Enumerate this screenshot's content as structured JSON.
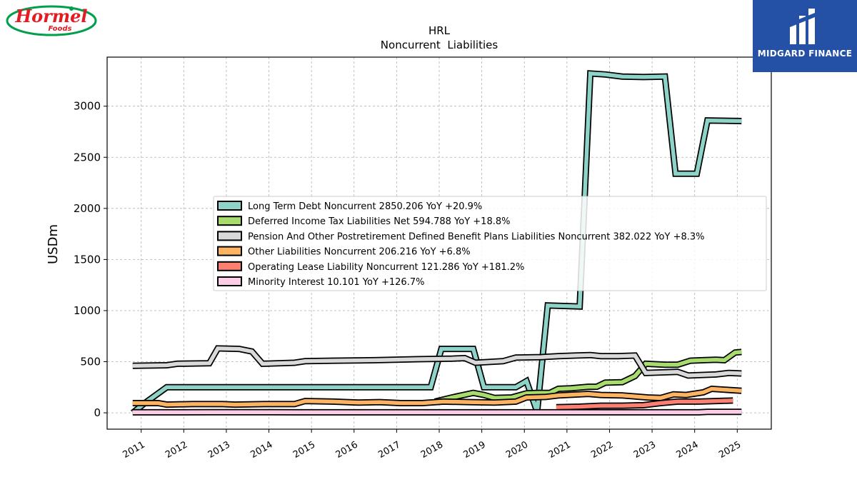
{
  "brand_left": {
    "name": "Hormel",
    "sub": "Foods",
    "color": "#e31b23",
    "ring": "#00a04a"
  },
  "brand_right": {
    "name": "MIDGARD FINANCE",
    "bg": "#2451a6"
  },
  "chart_data": {
    "type": "line",
    "title": "HRL",
    "subtitle": "Noncurrent  Liabilities",
    "ylabel": "USDm",
    "xlabel": "",
    "xlim": [
      2010.2,
      2025.8
    ],
    "ylim": [
      -160,
      3480
    ],
    "yticks": [
      0,
      500,
      1000,
      1500,
      2000,
      2500,
      3000
    ],
    "xticks": [
      "2011",
      "2012",
      "2013",
      "2014",
      "2015",
      "2016",
      "2017",
      "2018",
      "2019",
      "2020",
      "2021",
      "2022",
      "2023",
      "2024",
      "2025"
    ],
    "grid": true,
    "legend_position": "center-right",
    "series": [
      {
        "name": "Long Term Debt Noncurrent  2850.206 YoY +20.9%",
        "color": "#8dd3c7",
        "points": [
          [
            2010.8,
            0
          ],
          [
            2011.1,
            100
          ],
          [
            2011.6,
            250
          ],
          [
            2012.6,
            250
          ],
          [
            2013.5,
            250
          ],
          [
            2014.5,
            250
          ],
          [
            2015.5,
            250
          ],
          [
            2016.5,
            250
          ],
          [
            2017.5,
            250
          ],
          [
            2017.8,
            250
          ],
          [
            2018.05,
            625
          ],
          [
            2018.8,
            625
          ],
          [
            2019.05,
            250
          ],
          [
            2019.8,
            250
          ],
          [
            2020.05,
            310
          ],
          [
            2020.3,
            10
          ],
          [
            2020.55,
            1050
          ],
          [
            2021.3,
            1040
          ],
          [
            2021.55,
            3320
          ],
          [
            2021.9,
            3310
          ],
          [
            2022.3,
            3290
          ],
          [
            2022.8,
            3285
          ],
          [
            2023.3,
            3290
          ],
          [
            2023.55,
            2340
          ],
          [
            2024.05,
            2340
          ],
          [
            2024.3,
            2860
          ],
          [
            2025.1,
            2855
          ]
        ]
      },
      {
        "name": "Deferred Income Tax Liabilities Net  594.788 YoY +18.8%",
        "color": "#a8dd6e",
        "points": [
          [
            2017.9,
            110
          ],
          [
            2018.3,
            150
          ],
          [
            2018.8,
            195
          ],
          [
            2019.05,
            175
          ],
          [
            2019.3,
            145
          ],
          [
            2019.7,
            150
          ],
          [
            2020.05,
            190
          ],
          [
            2020.3,
            195
          ],
          [
            2020.6,
            195
          ],
          [
            2020.8,
            235
          ],
          [
            2021.1,
            240
          ],
          [
            2021.5,
            255
          ],
          [
            2021.7,
            255
          ],
          [
            2021.9,
            295
          ],
          [
            2022.3,
            300
          ],
          [
            2022.6,
            360
          ],
          [
            2022.85,
            480
          ],
          [
            2023.3,
            470
          ],
          [
            2023.6,
            470
          ],
          [
            2023.9,
            510
          ],
          [
            2024.2,
            515
          ],
          [
            2024.5,
            520
          ],
          [
            2024.7,
            515
          ],
          [
            2024.95,
            590
          ],
          [
            2025.1,
            595
          ]
        ]
      },
      {
        "name": "Pension And Other Postretirement Defined Benefit Plans Liabilities Noncurrent  382.022 YoY +8.3%",
        "color": "#d9d9d9",
        "points": [
          [
            2010.8,
            460
          ],
          [
            2011.6,
            465
          ],
          [
            2011.85,
            480
          ],
          [
            2012.6,
            485
          ],
          [
            2012.8,
            630
          ],
          [
            2013.3,
            625
          ],
          [
            2013.6,
            600
          ],
          [
            2013.85,
            480
          ],
          [
            2014.6,
            490
          ],
          [
            2014.85,
            505
          ],
          [
            2015.5,
            510
          ],
          [
            2016.5,
            515
          ],
          [
            2017.5,
            525
          ],
          [
            2018.3,
            530
          ],
          [
            2018.6,
            535
          ],
          [
            2018.85,
            490
          ],
          [
            2019.5,
            505
          ],
          [
            2019.8,
            540
          ],
          [
            2020.4,
            545
          ],
          [
            2020.8,
            555
          ],
          [
            2021.2,
            560
          ],
          [
            2021.55,
            565
          ],
          [
            2021.8,
            555
          ],
          [
            2022.2,
            555
          ],
          [
            2022.6,
            560
          ],
          [
            2022.85,
            390
          ],
          [
            2023.6,
            400
          ],
          [
            2023.85,
            365
          ],
          [
            2024.5,
            375
          ],
          [
            2024.8,
            390
          ],
          [
            2025.1,
            385
          ]
        ]
      },
      {
        "name": "Other Liabilities Noncurrent  206.216 YoY +6.8%",
        "color": "#fdb462",
        "points": [
          [
            2010.8,
            95
          ],
          [
            2011.4,
            95
          ],
          [
            2011.6,
            80
          ],
          [
            2012.2,
            85
          ],
          [
            2012.9,
            85
          ],
          [
            2013.2,
            80
          ],
          [
            2013.9,
            85
          ],
          [
            2014.6,
            85
          ],
          [
            2014.85,
            115
          ],
          [
            2015.5,
            110
          ],
          [
            2016.1,
            100
          ],
          [
            2016.6,
            105
          ],
          [
            2017.1,
            95
          ],
          [
            2017.6,
            95
          ],
          [
            2018.1,
            110
          ],
          [
            2018.7,
            105
          ],
          [
            2019.3,
            100
          ],
          [
            2019.8,
            110
          ],
          [
            2020.05,
            150
          ],
          [
            2020.5,
            155
          ],
          [
            2020.8,
            170
          ],
          [
            2021.5,
            185
          ],
          [
            2021.8,
            175
          ],
          [
            2022.3,
            170
          ],
          [
            2022.9,
            150
          ],
          [
            2023.2,
            145
          ],
          [
            2023.5,
            180
          ],
          [
            2023.8,
            175
          ],
          [
            2024.2,
            200
          ],
          [
            2024.4,
            235
          ],
          [
            2025.1,
            215
          ]
        ]
      },
      {
        "name": "Operating Lease Liability Noncurrent  121.286 YoY +181.2%",
        "color": "#fb8072",
        "points": [
          [
            2020.75,
            55
          ],
          [
            2021.3,
            60
          ],
          [
            2021.8,
            70
          ],
          [
            2022.3,
            70
          ],
          [
            2022.8,
            75
          ],
          [
            2023.2,
            95
          ],
          [
            2023.6,
            110
          ],
          [
            2024.1,
            110
          ],
          [
            2024.5,
            115
          ],
          [
            2024.9,
            120
          ]
        ]
      },
      {
        "name": "Minority Interest  10.101 YoY +126.7%",
        "color": "#fccde5",
        "points": [
          [
            2010.8,
            5
          ],
          [
            2011.6,
            5
          ],
          [
            2012.6,
            6
          ],
          [
            2013.6,
            6
          ],
          [
            2014.6,
            5
          ],
          [
            2015.6,
            5
          ],
          [
            2016.6,
            5
          ],
          [
            2017.6,
            5
          ],
          [
            2018.6,
            5
          ],
          [
            2019.6,
            5
          ],
          [
            2020.6,
            5
          ],
          [
            2021.6,
            5
          ],
          [
            2022.6,
            5
          ],
          [
            2023.6,
            5
          ],
          [
            2024.1,
            5
          ],
          [
            2024.3,
            10
          ],
          [
            2025.1,
            10
          ]
        ]
      }
    ]
  }
}
